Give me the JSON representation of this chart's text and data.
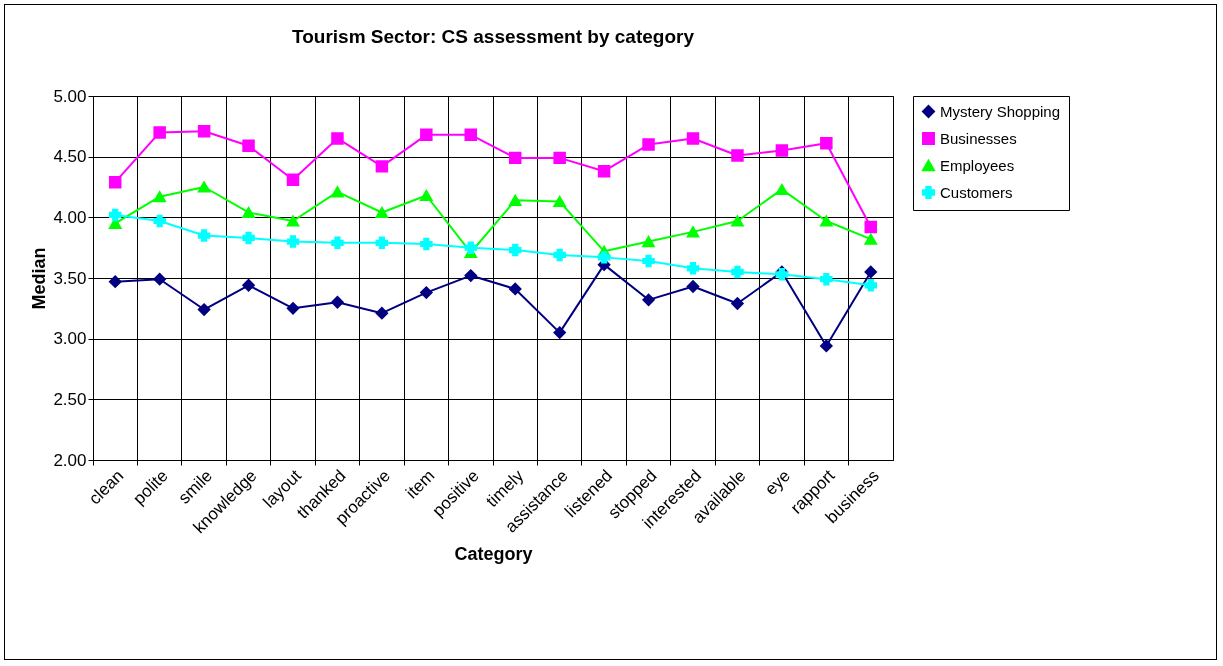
{
  "chart_data": {
    "type": "line",
    "title": "Tourism Sector: CS assessment by category",
    "xlabel": "Category",
    "ylabel": "Median",
    "categories": [
      "clean",
      "polite",
      "smile",
      "knowledge",
      "layout",
      "thanked",
      "proactive",
      "item",
      "positive",
      "timely",
      "assistance",
      "listened",
      "stopped",
      "interested",
      "available",
      "eye",
      "rapport",
      "business"
    ],
    "series": [
      {
        "name": "Mystery Shopping",
        "color": "#000080",
        "marker": "diamond",
        "values": [
          3.47,
          3.49,
          3.24,
          3.44,
          3.25,
          3.3,
          3.21,
          3.38,
          3.52,
          3.41,
          3.05,
          3.61,
          3.32,
          3.43,
          3.29,
          3.55,
          2.94,
          3.55
        ]
      },
      {
        "name": "Businesses",
        "color": "#ff00ff",
        "marker": "square",
        "values": [
          4.29,
          4.7,
          4.71,
          4.59,
          4.31,
          4.65,
          4.42,
          4.68,
          4.68,
          4.49,
          4.49,
          4.38,
          4.6,
          4.65,
          4.51,
          4.55,
          4.61,
          3.92
        ]
      },
      {
        "name": "Employees",
        "color": "#00ff00",
        "marker": "triangle",
        "values": [
          3.95,
          4.17,
          4.25,
          4.04,
          3.97,
          4.21,
          4.04,
          4.18,
          3.71,
          4.14,
          4.13,
          3.72,
          3.8,
          3.88,
          3.97,
          4.23,
          3.97,
          3.82
        ]
      },
      {
        "name": "Customers",
        "color": "#00ffff",
        "marker": "cross",
        "values": [
          4.02,
          3.97,
          3.85,
          3.83,
          3.8,
          3.79,
          3.79,
          3.78,
          3.75,
          3.73,
          3.69,
          3.67,
          3.64,
          3.58,
          3.55,
          3.53,
          3.49,
          3.44
        ]
      }
    ],
    "ylim": [
      2,
      5
    ],
    "yticks": [
      {
        "value": 2,
        "label": "2.00"
      },
      {
        "value": 2.5,
        "label": "2.50"
      },
      {
        "value": 3,
        "label": "3.00"
      },
      {
        "value": 3.5,
        "label": "3.50"
      },
      {
        "value": 4,
        "label": "4.00"
      },
      {
        "value": 4.5,
        "label": "4.50"
      },
      {
        "value": 5,
        "label": "5.00"
      }
    ],
    "grid": true,
    "legend": "right",
    "line_style": "solid"
  }
}
